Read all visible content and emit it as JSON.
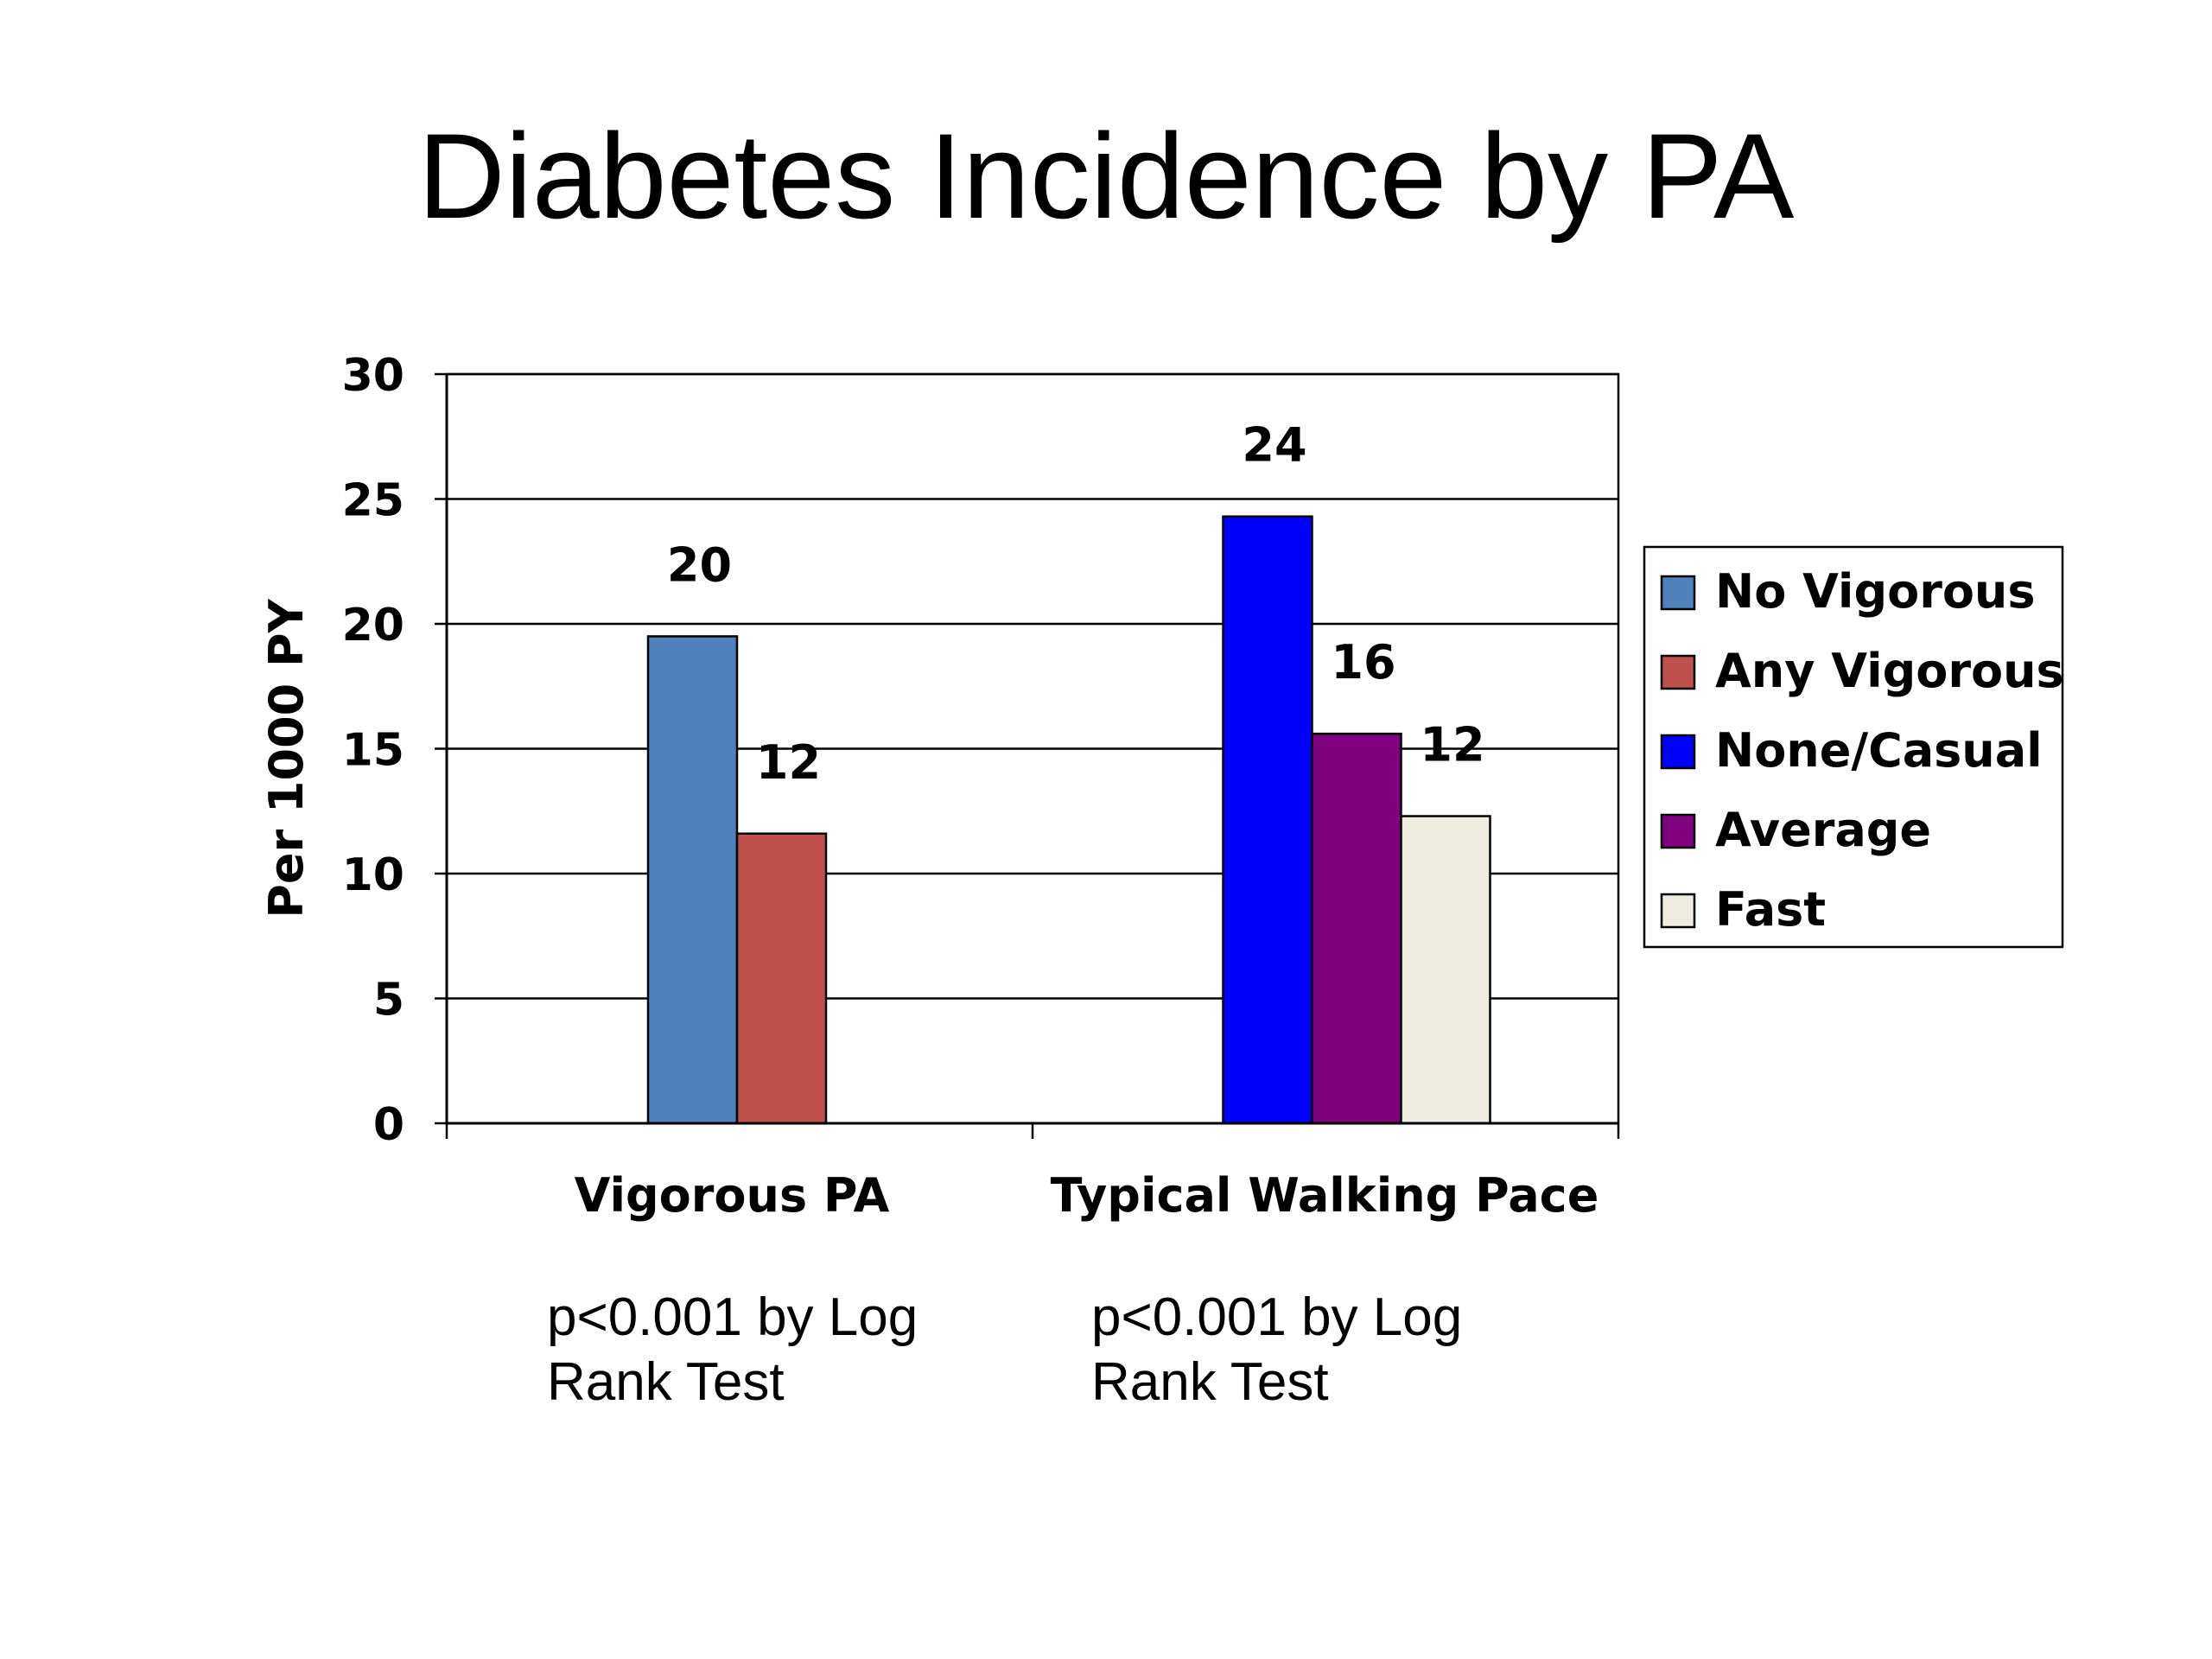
{
  "title": "Diabetes Incidence by PA",
  "chart_data": {
    "type": "bar",
    "ylabel": "Per 1000 PY",
    "ylim": [
      0,
      30
    ],
    "yticks": [
      0,
      5,
      10,
      15,
      20,
      25,
      30
    ],
    "grid": true,
    "legend_position": "right",
    "groups": [
      {
        "category": "Vigorous PA",
        "bars": [
          {
            "name": "No Vigorous",
            "value": 19.5,
            "label": "20"
          },
          {
            "name": "Any Vigorous",
            "value": 11.6,
            "label": "12"
          }
        ]
      },
      {
        "category": "Typical Walking Pace",
        "bars": [
          {
            "name": "None/Casual",
            "value": 24.3,
            "label": "24"
          },
          {
            "name": "Average",
            "value": 15.6,
            "label": "16"
          },
          {
            "name": "Fast",
            "value": 12.3,
            "label": "12"
          }
        ]
      }
    ],
    "legend": [
      {
        "name": "No Vigorous",
        "color": "#4F81BD"
      },
      {
        "name": "Any Vigorous",
        "color": "#C0504D"
      },
      {
        "name": "None/Casual",
        "color": "#0000FF"
      },
      {
        "name": "Average",
        "color": "#800080"
      },
      {
        "name": "Fast",
        "color": "#EEECE1"
      }
    ]
  },
  "notes": [
    {
      "line1": "p<0.001 by Log",
      "line2": "Rank Test"
    },
    {
      "line1": "p<0.001 by Log",
      "line2": "Rank Test"
    }
  ]
}
